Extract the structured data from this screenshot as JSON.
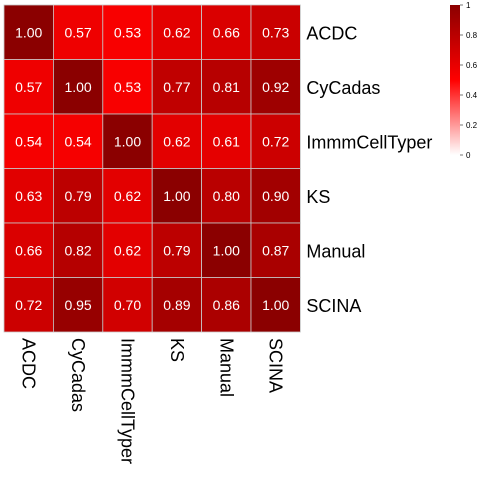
{
  "chart_data": {
    "type": "heatmap",
    "title": "",
    "xlabel": "",
    "ylabel": "",
    "rows": [
      "ACDC",
      "CyCadas",
      "ImmmCellTyper",
      "KS",
      "Manual",
      "SCINA"
    ],
    "columns": [
      "ACDC",
      "CyCadas",
      "ImmmCellTyper",
      "KS",
      "Manual",
      "SCINA"
    ],
    "values": [
      [
        1.0,
        0.57,
        0.53,
        0.62,
        0.66,
        0.73
      ],
      [
        0.57,
        1.0,
        0.53,
        0.77,
        0.81,
        0.92
      ],
      [
        0.54,
        0.54,
        1.0,
        0.62,
        0.61,
        0.72
      ],
      [
        0.63,
        0.79,
        0.62,
        1.0,
        0.8,
        0.9
      ],
      [
        0.66,
        0.82,
        0.62,
        0.79,
        1.0,
        0.87
      ],
      [
        0.72,
        0.95,
        0.7,
        0.89,
        0.86,
        1.0
      ]
    ],
    "cell_labels": [
      [
        "1.00",
        "0.57",
        "0.53",
        "0.62",
        "0.66",
        "0.73"
      ],
      [
        "0.57",
        "1.00",
        "0.53",
        "0.77",
        "0.81",
        "0.92"
      ],
      [
        "0.54",
        "0.54",
        "1.00",
        "0.62",
        "0.61",
        "0.72"
      ],
      [
        "0.63",
        "0.79",
        "0.62",
        "1.00",
        "0.80",
        "0.90"
      ],
      [
        "0.66",
        "0.82",
        "0.62",
        "0.79",
        "1.00",
        "0.87"
      ],
      [
        "0.72",
        "0.95",
        "0.70",
        "0.89",
        "0.86",
        "1.00"
      ]
    ],
    "color_scale": {
      "range": [
        0,
        1
      ],
      "ticks": [
        "0",
        "0.2",
        "0.4",
        "0.6",
        "0.8",
        "1"
      ],
      "colors": [
        "#ffffff",
        "#ff0000",
        "#8b0000"
      ]
    },
    "legend_placement": "top-right",
    "grid": false
  }
}
